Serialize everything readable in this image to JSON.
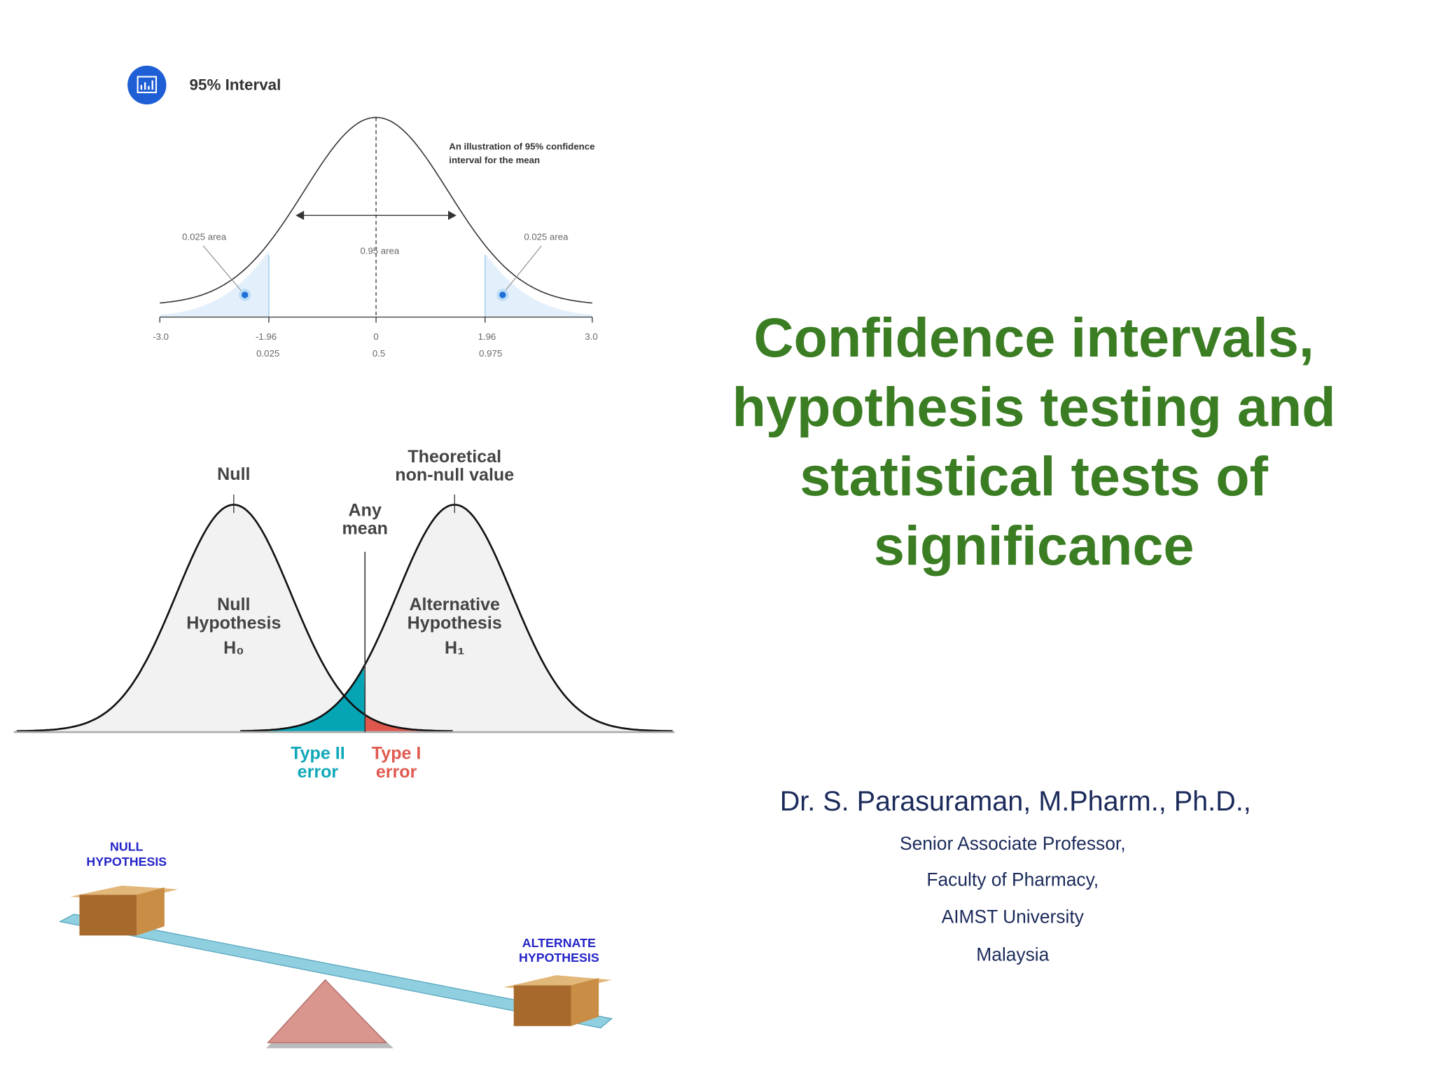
{
  "title": [
    "Confidence intervals,",
    "hypothesis testing and",
    "statistical tests of",
    "significance"
  ],
  "author": {
    "name": "Dr. S. Parasuraman, M.Pharm., Ph.D.,",
    "lines": [
      "Senior Associate Professor,",
      "Faculty of Pharmacy,",
      "AIMST University",
      "Malaysia"
    ]
  },
  "figures": [
    {
      "title": "95% Interval",
      "caption": [
        "An illustration of 95% confidence",
        "interval for the mean"
      ],
      "area_labels": [
        "0.025 area",
        "0.95 area",
        "0.025 area"
      ],
      "axis_z": [
        "-3.0",
        "-1.96",
        "0",
        "1.96",
        "3.0"
      ],
      "axis_p": [
        "0.025",
        "0.5",
        "0.975"
      ]
    },
    {
      "null": "Null",
      "theoretical": [
        "Theoretical",
        "non-null value"
      ],
      "any_mean": [
        "Any",
        "mean"
      ],
      "null_hypothesis": [
        "Null",
        "Hypothesis",
        "H₀"
      ],
      "alternative_hypothesis": [
        "Alternative",
        "Hypothesis",
        "H₁"
      ],
      "type_2": [
        "Type II",
        "error"
      ],
      "type_1": [
        "Type I",
        "error"
      ]
    },
    {
      "null": [
        "NULL",
        "HYPOTHESIS"
      ],
      "alternate": [
        "ALTERNATE",
        "HYPOTHESIS"
      ]
    }
  ]
}
